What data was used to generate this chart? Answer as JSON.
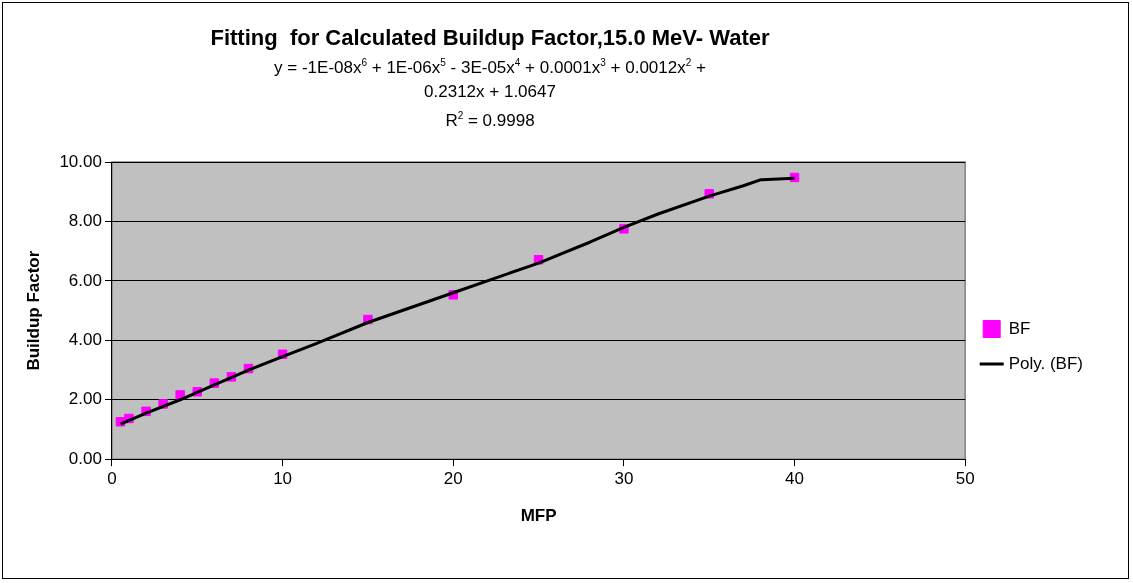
{
  "chart_data": {
    "type": "scatter",
    "title": "Fitting  for Calculated Buildup Factor,15.0 MeV- Water",
    "subtitle": "y = -1E-08x$^{6}$ + 1E-06x$^{5}$ - 3E-05x$^{4}$ + 0.0001x$^{3}$ + 0.0012x$^{2}$ + 0.2312x + 1.0647",
    "annotations": [
      "R$^{2}$ = 0.9998"
    ],
    "xlabel": "MFP",
    "ylabel": "Buildup Factor",
    "series": [
      {
        "name": "BF",
        "type": "scatter",
        "color": "#ff00ff",
        "marker": "square",
        "x": [
          0.5,
          1,
          2,
          3,
          4,
          5,
          6,
          7,
          8,
          10,
          15,
          20,
          25,
          30,
          35,
          40
        ],
        "values": [
          1.26,
          1.37,
          1.61,
          1.86,
          2.16,
          2.27,
          2.56,
          2.77,
          3.05,
          3.53,
          4.7,
          5.53,
          6.71,
          7.75,
          8.93,
          9.48
        ]
      },
      {
        "name": "Poly. (BF)",
        "type": "line",
        "color": "#000000",
        "marker": "none",
        "line_style": "solid",
        "x": [
          0.5,
          2,
          4,
          6,
          8,
          10,
          12,
          15,
          20,
          25,
          28,
          30,
          32,
          35,
          37,
          38,
          40
        ],
        "values": [
          1.18,
          1.55,
          2.0,
          2.5,
          3.0,
          3.45,
          3.9,
          4.6,
          5.6,
          6.6,
          7.3,
          7.8,
          8.25,
          8.85,
          9.2,
          9.4,
          9.45
        ]
      }
    ],
    "xlim": [
      0,
      50
    ],
    "xticks": [
      0,
      10,
      20,
      30,
      40,
      50
    ],
    "ylim": [
      0,
      10
    ],
    "yticks": [
      {
        "value": 0,
        "label": "0.00"
      },
      {
        "value": 2,
        "label": "2.00"
      },
      {
        "value": 4,
        "label": "4.00"
      },
      {
        "value": 6,
        "label": "6.00"
      },
      {
        "value": 8,
        "label": "8.00"
      },
      {
        "value": 10,
        "label": "10.00"
      }
    ],
    "grid": "y",
    "legend": "right"
  }
}
